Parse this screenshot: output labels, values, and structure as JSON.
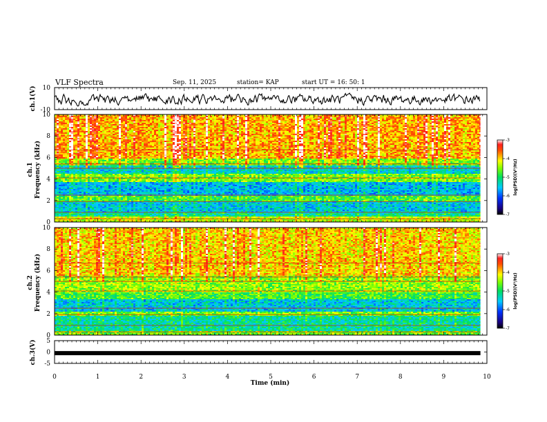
{
  "header": {
    "title": "VLF Spectra",
    "date": "Sep. 11, 2025",
    "station": "station= KAP",
    "start": "start  UT =   16: 50: 1"
  },
  "chart_data": [
    {
      "type": "line",
      "panel": "ch1-waveform",
      "ylabel": "ch.1(V)",
      "ylim": [
        -10,
        10
      ],
      "yticks": [
        "10",
        "-10"
      ],
      "xlim": [
        0,
        10
      ],
      "x_end": 9.85,
      "series_summary": "noisy waveform around -1 V, amplitude about ±4 V"
    },
    {
      "type": "heatmap",
      "panel": "ch1-spectrogram",
      "ylabel": "ch.1\nFrequency (kHz)",
      "ylim": [
        0,
        10
      ],
      "yticks": [
        "0",
        "2",
        "4",
        "6",
        "8",
        "10"
      ],
      "xlim": [
        0,
        10
      ],
      "x_end": 9.85,
      "bands": [
        {
          "from": 0.0,
          "to": 0.6,
          "level": -4.3
        },
        {
          "from": 0.6,
          "to": 1.0,
          "level": -5.2
        },
        {
          "from": 1.0,
          "to": 2.0,
          "level": -5.5
        },
        {
          "from": 2.0,
          "to": 2.5,
          "level": -4.8
        },
        {
          "from": 2.5,
          "to": 3.8,
          "level": -5.6
        },
        {
          "from": 3.8,
          "to": 4.5,
          "level": -4.6
        },
        {
          "from": 4.5,
          "to": 5.3,
          "level": -5.4
        },
        {
          "from": 5.3,
          "to": 6.0,
          "level": -4.6
        },
        {
          "from": 6.0,
          "to": 10.0,
          "level": -3.9
        }
      ]
    },
    {
      "type": "heatmap",
      "panel": "ch2-spectrogram",
      "ylabel": "ch.2\nFrequency (kHz)",
      "ylim": [
        0,
        10
      ],
      "yticks": [
        "0",
        "2",
        "4",
        "6",
        "8",
        "10"
      ],
      "xlim": [
        0,
        10
      ],
      "x_end": 9.85,
      "bands": [
        {
          "from": 0.0,
          "to": 0.5,
          "level": -4.6
        },
        {
          "from": 0.5,
          "to": 1.8,
          "level": -5.2
        },
        {
          "from": 1.8,
          "to": 2.2,
          "level": -4.6
        },
        {
          "from": 2.2,
          "to": 3.4,
          "level": -5.5
        },
        {
          "from": 3.4,
          "to": 4.0,
          "level": -4.8
        },
        {
          "from": 4.0,
          "to": 5.6,
          "level": -4.5
        },
        {
          "from": 5.6,
          "to": 10.0,
          "level": -4.0
        }
      ]
    },
    {
      "type": "line",
      "panel": "ch3-waveform",
      "ylabel": "ch.3(V)",
      "ylim": [
        -5,
        5
      ],
      "yticks": [
        "5",
        "0",
        "-5"
      ],
      "xlim": [
        0,
        10
      ],
      "x_end": 9.85,
      "level": -0.5,
      "series_summary": "flat thick line near 0 V"
    }
  ],
  "colorbar": {
    "label": "log(PSD)(V²/Hz)",
    "ticks": [
      "-3",
      "-4",
      "-5",
      "-6",
      "-7"
    ],
    "range": [
      -7,
      -3
    ]
  },
  "xaxis": {
    "label": "Time (min)",
    "ticks": [
      "0",
      "1",
      "2",
      "3",
      "4",
      "5",
      "6",
      "7",
      "8",
      "9",
      "10"
    ]
  }
}
